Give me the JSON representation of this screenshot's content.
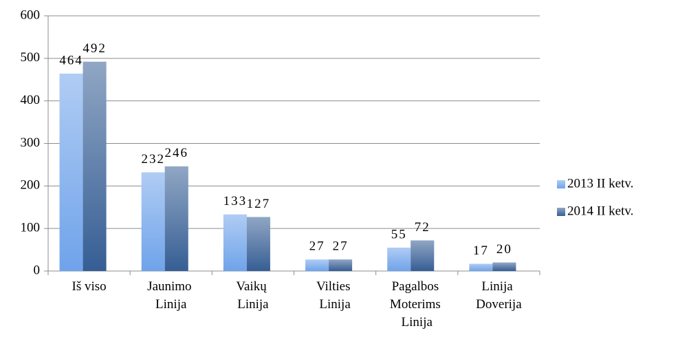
{
  "chart_data": {
    "type": "bar",
    "categories": [
      "Iš viso",
      "Jaunimo Linija",
      "Vaikų Linija",
      "Vilties Linija",
      "Pagalbos Moterims Linija",
      "Linija Doverija"
    ],
    "series": [
      {
        "name": "2013 II ketv.",
        "color": "#6fa3ea",
        "values": [
          464,
          232,
          133,
          27,
          55,
          17
        ]
      },
      {
        "name": "2014 II ketv.",
        "color": "#365e94",
        "values": [
          492,
          246,
          127,
          27,
          72,
          20
        ]
      }
    ],
    "ylim": [
      0,
      600
    ],
    "yticks": [
      0,
      100,
      200,
      300,
      400,
      500,
      600
    ],
    "grid": true,
    "legend": "right"
  }
}
